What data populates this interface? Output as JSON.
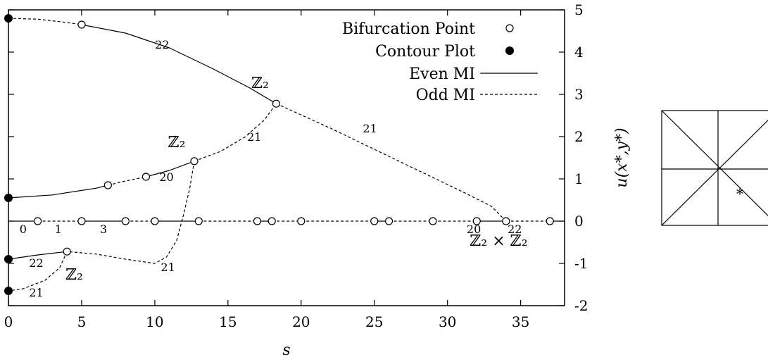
{
  "chart_data": {
    "type": "line",
    "xlabel": "s",
    "ylabel": "u(x*,y*)",
    "xlim": [
      0,
      38
    ],
    "ylim": [
      -2,
      5
    ],
    "xticks": [
      0,
      5,
      10,
      15,
      20,
      25,
      30,
      35
    ],
    "yticks": [
      -2,
      -1,
      0,
      1,
      2,
      3,
      4,
      5
    ],
    "ytick_labels": [
      "-2",
      "-1",
      "0",
      "1",
      "2",
      "3",
      "4",
      "5"
    ],
    "grid": false,
    "legend_position": "top-right",
    "legend": [
      {
        "label": "Bifurcation Point",
        "marker": "open-circle"
      },
      {
        "label": "Contour Plot",
        "marker": "filled-circle"
      },
      {
        "label": "Even MI",
        "style": "solid"
      },
      {
        "label": "Odd MI",
        "style": "dashed"
      }
    ],
    "series": [
      {
        "style": "dashed",
        "points": [
          [
            0,
            4.8
          ],
          [
            2,
            4.78
          ],
          [
            4,
            4.7
          ],
          [
            5,
            4.65
          ]
        ]
      },
      {
        "style": "solid",
        "points": [
          [
            5,
            4.65
          ],
          [
            8,
            4.45
          ],
          [
            11,
            4.1
          ],
          [
            14,
            3.6
          ],
          [
            16.5,
            3.15
          ],
          [
            18.3,
            2.78
          ]
        ]
      },
      {
        "style": "dashed",
        "points": [
          [
            18.3,
            2.78
          ],
          [
            22,
            2.2
          ],
          [
            25,
            1.7
          ],
          [
            28,
            1.2
          ],
          [
            31,
            0.7
          ],
          [
            33,
            0.35
          ],
          [
            34,
            0.0
          ]
        ]
      },
      {
        "style": "solid",
        "points": [
          [
            0,
            0.55
          ],
          [
            3,
            0.62
          ],
          [
            6,
            0.78
          ],
          [
            6.8,
            0.85
          ]
        ]
      },
      {
        "style": "dashed",
        "points": [
          [
            6.8,
            0.85
          ],
          [
            8,
            0.95
          ],
          [
            9.4,
            1.05
          ]
        ]
      },
      {
        "style": "solid",
        "points": [
          [
            9.4,
            1.05
          ],
          [
            11,
            1.2
          ],
          [
            12.7,
            1.42
          ]
        ]
      },
      {
        "style": "dashed",
        "points": [
          [
            12.7,
            1.42
          ],
          [
            14.5,
            1.65
          ],
          [
            16.2,
            2.0
          ],
          [
            17.5,
            2.4
          ],
          [
            18.3,
            2.78
          ]
        ]
      },
      {
        "style": "dashed",
        "points": [
          [
            12.7,
            1.42
          ],
          [
            12.4,
            0.8
          ],
          [
            12.0,
            0.2
          ],
          [
            11.5,
            -0.45
          ],
          [
            10.8,
            -0.85
          ],
          [
            10.0,
            -1.0
          ],
          [
            8,
            -0.9
          ],
          [
            6,
            -0.78
          ],
          [
            4,
            -0.72
          ]
        ]
      },
      {
        "style": "solid",
        "points": [
          [
            0,
            -0.9
          ],
          [
            2,
            -0.8
          ],
          [
            4,
            -0.72
          ]
        ]
      },
      {
        "style": "dashed",
        "points": [
          [
            4,
            -0.72
          ],
          [
            3.5,
            -1.1
          ],
          [
            2.5,
            -1.4
          ],
          [
            1,
            -1.6
          ],
          [
            0,
            -1.65
          ]
        ]
      },
      {
        "style": "solid",
        "points": [
          [
            0,
            0
          ],
          [
            2,
            0
          ]
        ]
      },
      {
        "style": "dashed",
        "points": [
          [
            2,
            0
          ],
          [
            5,
            0
          ]
        ]
      },
      {
        "style": "solid",
        "points": [
          [
            5,
            0
          ],
          [
            8,
            0
          ]
        ]
      },
      {
        "style": "dashed",
        "points": [
          [
            8,
            0
          ],
          [
            10,
            0
          ]
        ]
      },
      {
        "style": "solid",
        "points": [
          [
            10,
            0
          ],
          [
            13,
            0
          ]
        ]
      },
      {
        "style": "dashed",
        "points": [
          [
            13,
            0
          ],
          [
            17,
            0
          ]
        ]
      },
      {
        "style": "solid",
        "points": [
          [
            17,
            0
          ],
          [
            18,
            0
          ]
        ]
      },
      {
        "style": "dashed",
        "points": [
          [
            18,
            0
          ],
          [
            25,
            0
          ]
        ]
      },
      {
        "style": "solid",
        "points": [
          [
            25,
            0
          ],
          [
            26,
            0
          ]
        ]
      },
      {
        "style": "dashed",
        "points": [
          [
            26,
            0
          ],
          [
            32,
            0
          ]
        ]
      },
      {
        "style": "solid",
        "points": [
          [
            32,
            0
          ],
          [
            34,
            0
          ]
        ]
      },
      {
        "style": "dashed",
        "points": [
          [
            34,
            0
          ],
          [
            37,
            0
          ]
        ]
      },
      {
        "style": "solid",
        "points": [
          [
            37,
            0
          ],
          [
            38,
            0
          ]
        ]
      }
    ],
    "bifurcation_points": [
      [
        5,
        4.65
      ],
      [
        18.3,
        2.78
      ],
      [
        6.8,
        0.85
      ],
      [
        9.4,
        1.05
      ],
      [
        12.7,
        1.42
      ],
      [
        4,
        -0.72
      ],
      [
        2,
        0
      ],
      [
        5,
        0
      ],
      [
        8,
        0
      ],
      [
        10,
        0
      ],
      [
        13,
        0
      ],
      [
        17,
        0
      ],
      [
        18,
        0
      ],
      [
        20,
        0
      ],
      [
        25,
        0
      ],
      [
        26,
        0
      ],
      [
        29,
        0
      ],
      [
        32,
        0
      ],
      [
        34,
        0
      ],
      [
        37,
        0
      ]
    ],
    "contour_points": [
      [
        0,
        4.8
      ],
      [
        0,
        0.55
      ],
      [
        0,
        -0.9
      ],
      [
        0,
        -1.65
      ]
    ],
    "annotations": [
      {
        "text": "22",
        "x": 10.5,
        "y": 4.08,
        "kind": "branch"
      },
      {
        "text": "21",
        "x": 24.7,
        "y": 2.1,
        "kind": "branch"
      },
      {
        "text": "21",
        "x": 16.8,
        "y": 1.9,
        "kind": "branch"
      },
      {
        "text": "20",
        "x": 10.8,
        "y": 0.95,
        "kind": "branch"
      },
      {
        "text": "0",
        "x": 1.0,
        "y": -0.28,
        "kind": "branch"
      },
      {
        "text": "1",
        "x": 3.4,
        "y": -0.28,
        "kind": "branch"
      },
      {
        "text": "3",
        "x": 6.5,
        "y": -0.28,
        "kind": "branch"
      },
      {
        "text": "20",
        "x": 31.8,
        "y": -0.28,
        "kind": "branch"
      },
      {
        "text": "22",
        "x": 34.6,
        "y": -0.28,
        "kind": "branch"
      },
      {
        "text": "22",
        "x": 1.9,
        "y": -1.08,
        "kind": "branch"
      },
      {
        "text": "21",
        "x": 10.9,
        "y": -1.18,
        "kind": "branch"
      },
      {
        "text": "21",
        "x": 1.9,
        "y": -1.78,
        "kind": "branch"
      },
      {
        "text": "ℤ₂",
        "x": 17.2,
        "y": 3.15,
        "kind": "symmetry"
      },
      {
        "text": "ℤ₂",
        "x": 11.5,
        "y": 1.75,
        "kind": "symmetry"
      },
      {
        "text": "ℤ₂",
        "x": 4.5,
        "y": -1.38,
        "kind": "symmetry"
      },
      {
        "text": "ℤ₂ × ℤ₂",
        "x": 33.5,
        "y": -0.58,
        "kind": "symmetry"
      }
    ]
  },
  "inset": {
    "marker_label": "*"
  }
}
